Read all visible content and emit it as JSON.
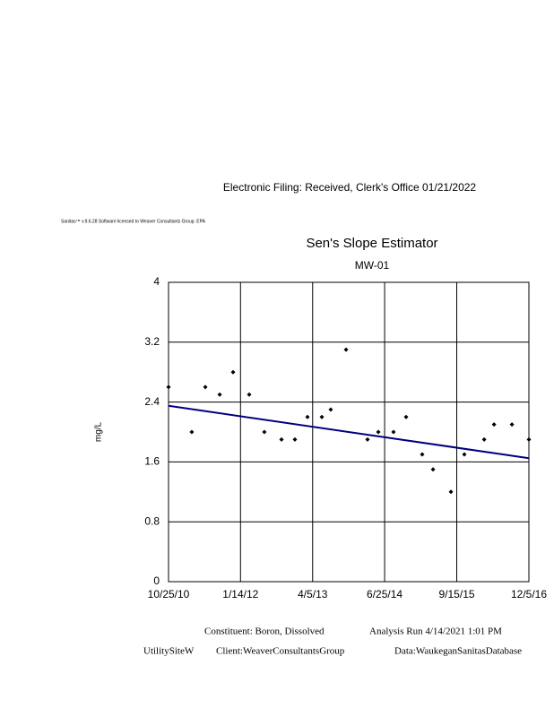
{
  "header": {
    "filing": "Electronic Filing: Received, Clerk's Office 01/21/2022",
    "license": "Sanitas™ v.9.6.28 Software licensed to Weaver Consultants Group. EPA"
  },
  "chart_data": {
    "type": "scatter",
    "title": "Sen's Slope Estimator",
    "subtitle": "MW-01",
    "y_label": "mg/L",
    "x": [
      "10/25/10",
      "3/18/11",
      "6/10/11",
      "9/7/11",
      "11/29/11",
      "3/8/12",
      "6/10/12",
      "9/24/12",
      "12/16/12",
      "3/4/13",
      "6/1/13",
      "7/26/13",
      "10/29/13",
      "3/11/14",
      "5/17/14",
      "8/19/14",
      "11/5/14",
      "2/13/15",
      "4/21/15",
      "8/10/15",
      "11/1/15",
      "3/3/16",
      "5/3/16",
      "8/22/16",
      "12/5/16"
    ],
    "values": [
      2.6,
      2.0,
      2.6,
      2.5,
      2.8,
      2.5,
      2.0,
      1.9,
      1.9,
      2.2,
      2.2,
      2.3,
      3.1,
      1.9,
      2.0,
      2.0,
      2.2,
      1.7,
      1.5,
      1.2,
      1.7,
      1.9,
      2.1,
      2.1,
      1.9
    ],
    "color": "#000000",
    "trend_line": {
      "x": [
        "10/25/10",
        "12/5/16"
      ],
      "values": [
        2.35,
        1.65
      ],
      "color": "#000080"
    },
    "xlim": [
      "10/25/10",
      "12/5/16"
    ],
    "xticks": [
      "10/25/10",
      "1/14/12",
      "4/5/13",
      "6/25/14",
      "9/15/15",
      "12/5/16"
    ],
    "ylim": [
      0,
      4
    ],
    "yticks": [
      0,
      0.8,
      1.6,
      2.4,
      3.2,
      4
    ],
    "grid": true
  },
  "footer": {
    "constituent": "Constituent: Boron, Dissolved",
    "analysis_run": "Analysis Run 4/14/2021 1:01 PM",
    "site": "UtilitySiteW",
    "client": "Client:WeaverConsultantsGroup",
    "data_source": "Data:WaukeganSanitasDatabase"
  }
}
